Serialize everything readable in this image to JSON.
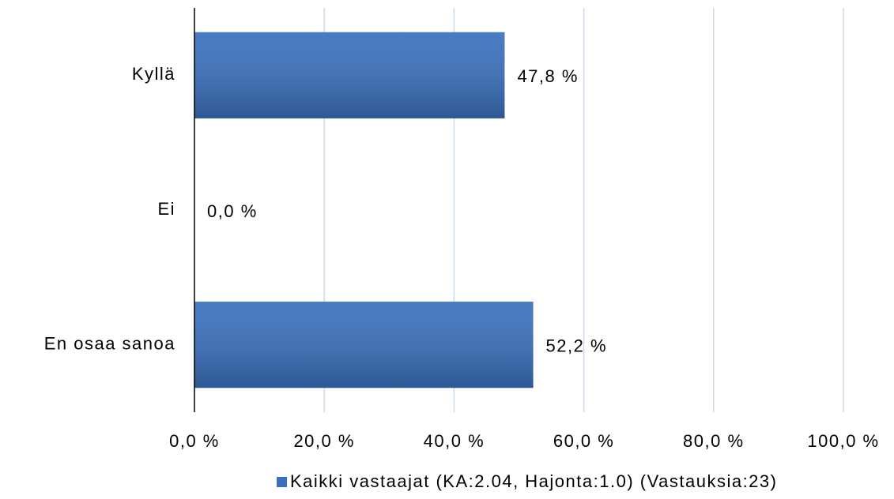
{
  "chart_data": {
    "type": "bar",
    "orientation": "horizontal",
    "categories": [
      "Kyllä",
      "Ei",
      "En osaa sanoa"
    ],
    "series": [
      {
        "name": "Kaikki vastaajat (KA:2.04, Hajonta:1.0) (Vastauksia:23)",
        "color": "#3a70bd",
        "values": [
          47.8,
          0.0,
          52.2
        ],
        "value_labels": [
          "47,8 %",
          "0,0 %",
          "52,2 %"
        ]
      }
    ],
    "xlim": [
      0,
      100
    ],
    "xticks": [
      {
        "value": 0,
        "label": "0,0 %"
      },
      {
        "value": 20,
        "label": "20,0 %"
      },
      {
        "value": 40,
        "label": "40,0 %"
      },
      {
        "value": 60,
        "label": "60,0 %"
      },
      {
        "value": 80,
        "label": "80,0 %"
      },
      {
        "value": 100,
        "label": "100,0 %"
      }
    ],
    "grid": true,
    "legend": "bottom"
  }
}
